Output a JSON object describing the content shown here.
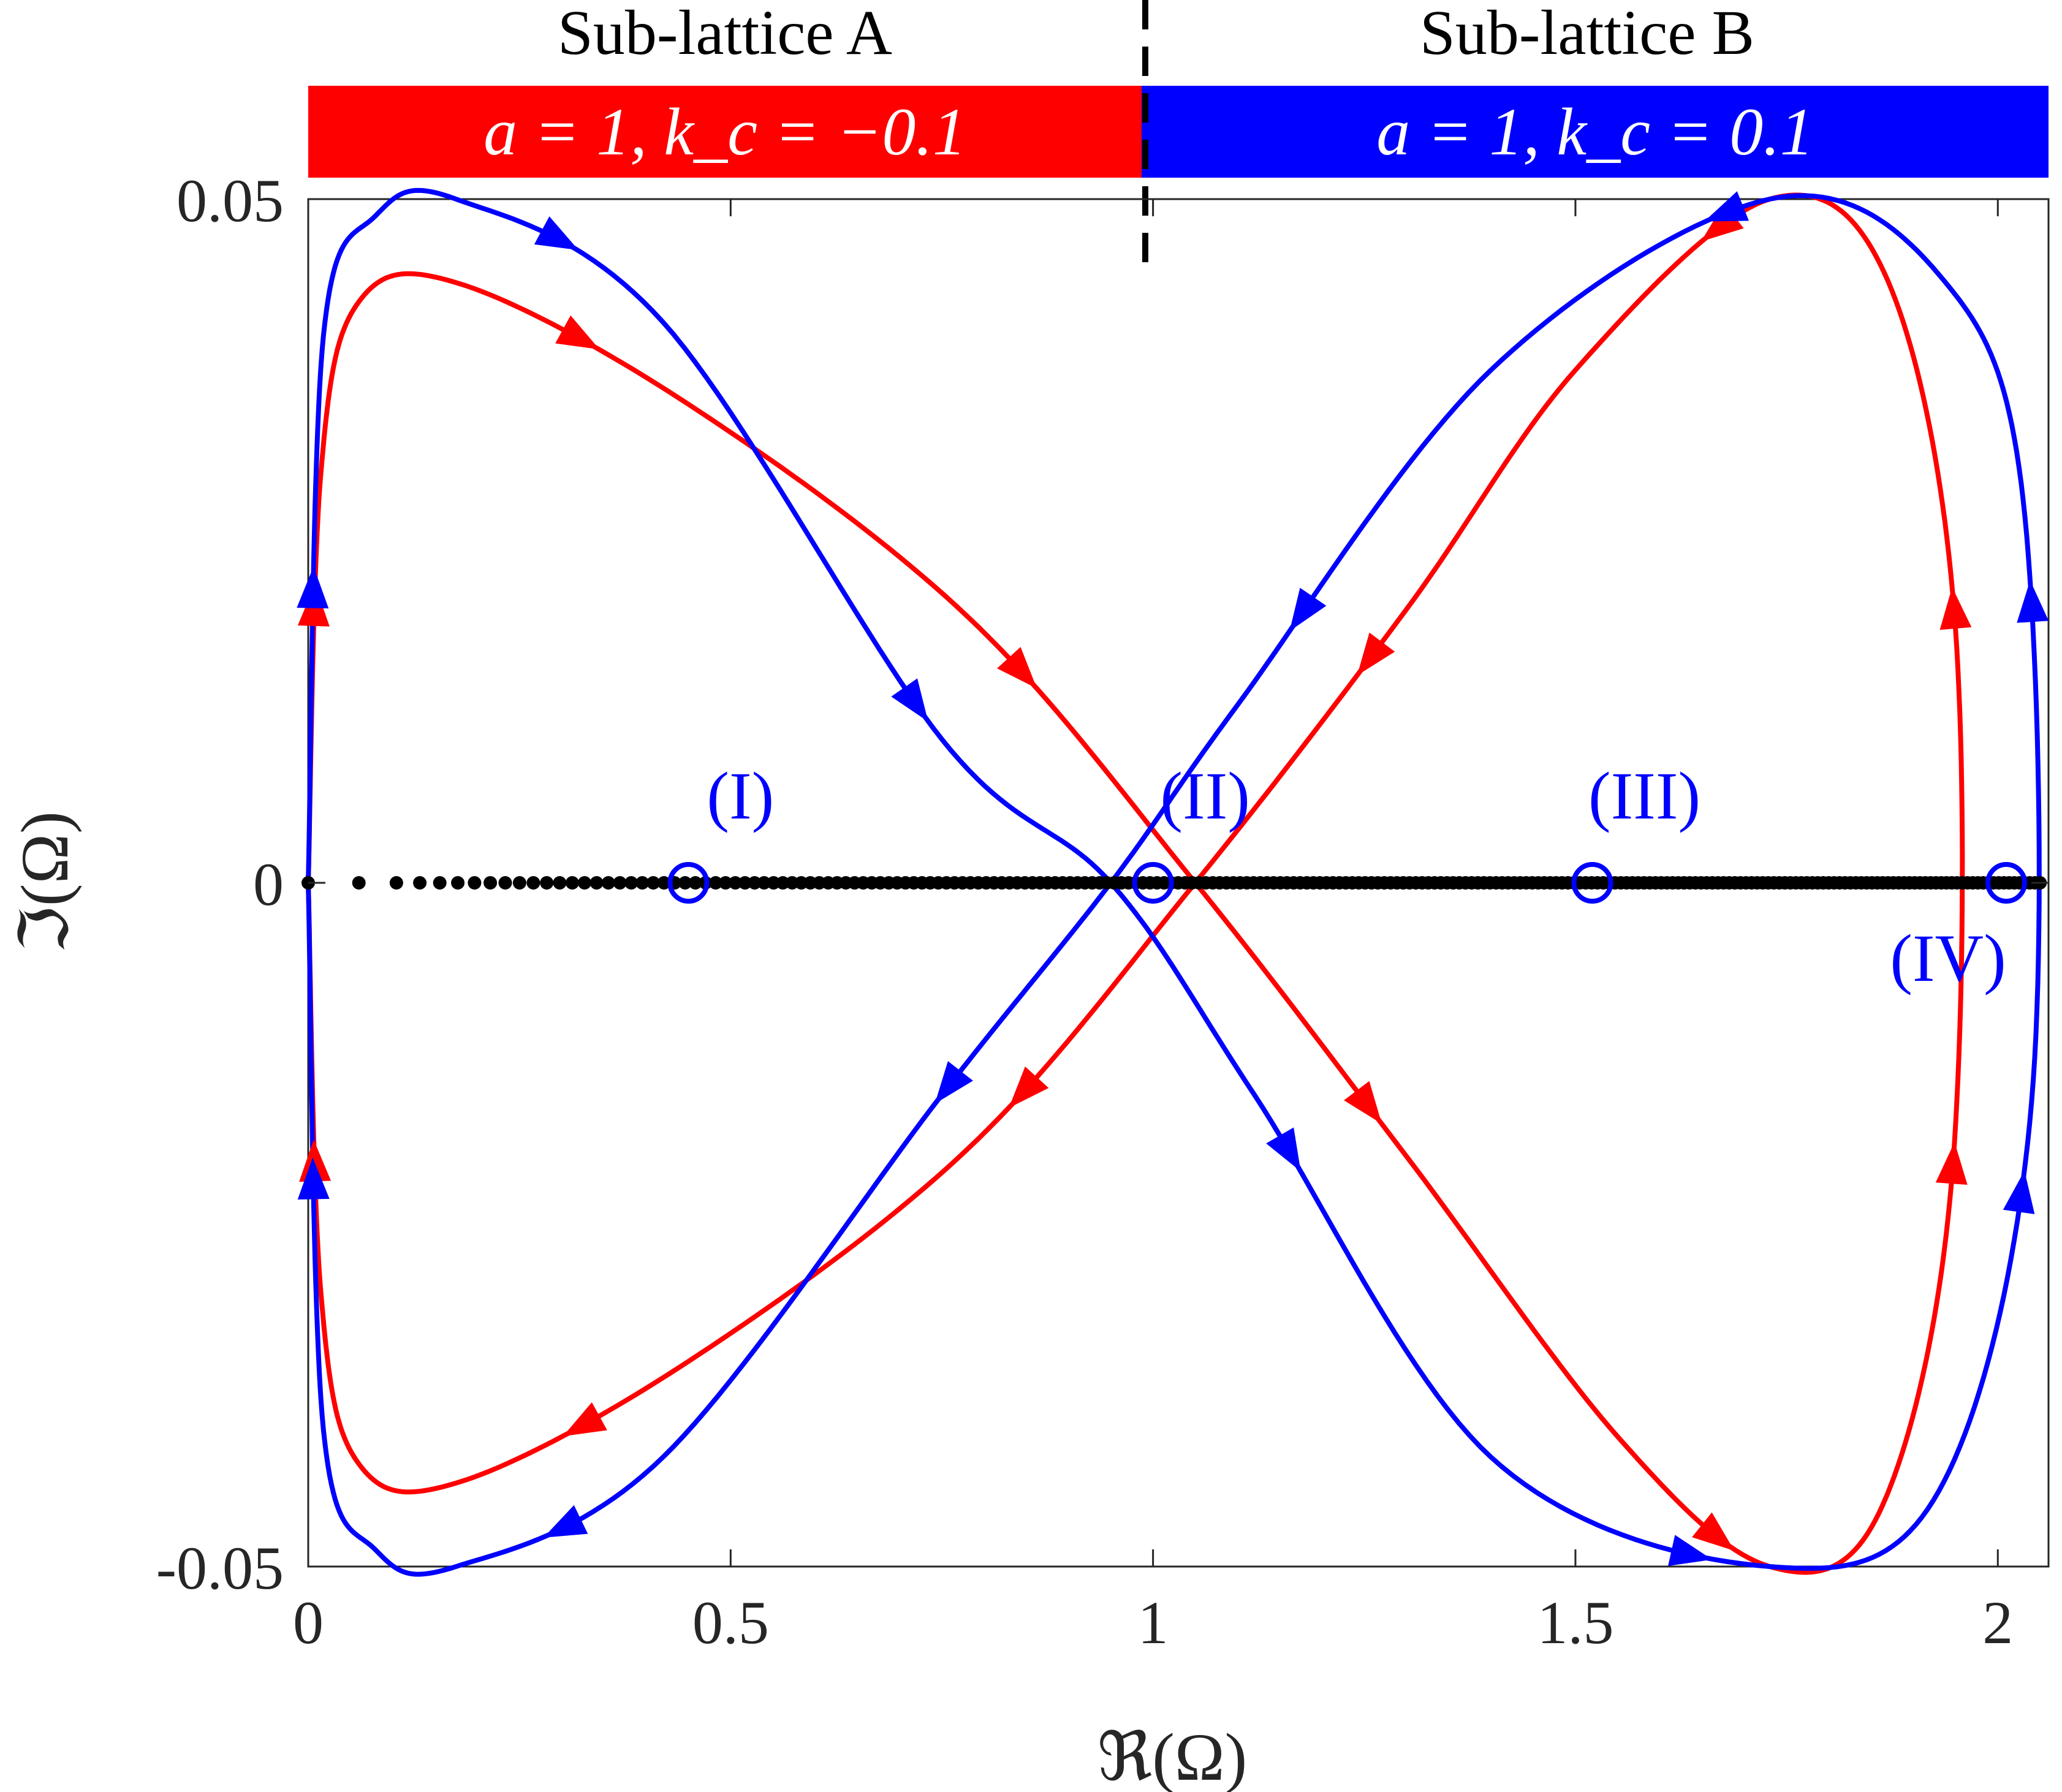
{
  "header": {
    "left_title": "Sub-lattice A",
    "right_title": "Sub-lattice B",
    "left_params": "a = 1, k_c = −0.1",
    "right_params": "a = 1, k_c = 0.1",
    "left_color": "#ff0000",
    "right_color": "#0000ff"
  },
  "chart_data": {
    "type": "line",
    "xlabel": "ℜ(Ω)",
    "ylabel": "ℑ(Ω)",
    "xlim": [
      0,
      2.06
    ],
    "ylim": [
      -0.05,
      0.05
    ],
    "xticks": [
      0,
      0.5,
      1,
      1.5,
      2
    ],
    "xtick_labels": [
      "0",
      "0.5",
      "1",
      "1.5",
      "2"
    ],
    "yticks": [
      -0.05,
      0,
      0.05
    ],
    "ytick_labels": [
      "-0.05",
      "0",
      "0.05"
    ],
    "grid": false,
    "series": [
      {
        "color": "#ff0000",
        "points": [
          [
            0,
            0
          ],
          [
            0.015,
            0.03
          ],
          [
            0.06,
            0.0425
          ],
          [
            0.18,
            0.0438
          ],
          [
            0.45,
            0.035
          ],
          [
            0.78,
            0.0195
          ],
          [
            1.05,
            0
          ],
          [
            1.3,
            -0.02
          ],
          [
            1.55,
            -0.0405
          ],
          [
            1.73,
            -0.05
          ],
          [
            1.86,
            -0.046
          ],
          [
            1.945,
            -0.022
          ],
          [
            1.95,
            0.0185
          ],
          [
            1.87,
            0.044
          ],
          [
            1.73,
            0.05
          ],
          [
            1.5,
            0.0375
          ],
          [
            1.3,
            0.02
          ],
          [
            1.05,
            0
          ],
          [
            0.78,
            -0.0195
          ],
          [
            0.45,
            -0.035
          ],
          [
            0.18,
            -0.0438
          ],
          [
            0.06,
            -0.0425
          ],
          [
            0.015,
            -0.03
          ],
          [
            0,
            0
          ]
        ]
      },
      {
        "color": "#0000ff",
        "points": [
          [
            0,
            0
          ],
          [
            0.018,
            0.04
          ],
          [
            0.08,
            0.0488
          ],
          [
            0.175,
            0.05
          ],
          [
            0.42,
            0.041
          ],
          [
            0.75,
            0.0105
          ],
          [
            0.95,
            0
          ],
          [
            1.12,
            -0.0155
          ],
          [
            1.4,
            -0.042
          ],
          [
            1.73,
            -0.05
          ],
          [
            1.93,
            -0.0445
          ],
          [
            2.04,
            -0.016
          ],
          [
            2.03,
            0.028
          ],
          [
            1.93,
            0.0445
          ],
          [
            1.73,
            0.05
          ],
          [
            1.4,
            0.0375
          ],
          [
            1.1,
            0.013
          ],
          [
            0.95,
            0
          ],
          [
            0.75,
            -0.0155
          ],
          [
            0.42,
            -0.042
          ],
          [
            0.175,
            -0.05
          ],
          [
            0.08,
            -0.0488
          ],
          [
            0.018,
            -0.04
          ],
          [
            0,
            0
          ]
        ]
      }
    ],
    "real_axis_points": {
      "color": "#000000",
      "x_start": 0.06,
      "x_end": 2.05,
      "count": 230,
      "y": 0,
      "extra_x": [
        0
      ]
    },
    "markers": [
      {
        "label": "(I)",
        "x": 0.45,
        "y": 0,
        "label_pos": "above"
      },
      {
        "label": "(II)",
        "x": 1.0,
        "y": 0,
        "label_pos": "above"
      },
      {
        "label": "(III)",
        "x": 1.52,
        "y": 0,
        "label_pos": "above"
      },
      {
        "label": "(IV)",
        "x": 2.01,
        "y": 0,
        "label_pos": "below"
      }
    ],
    "marker_color": "#0000ff"
  }
}
